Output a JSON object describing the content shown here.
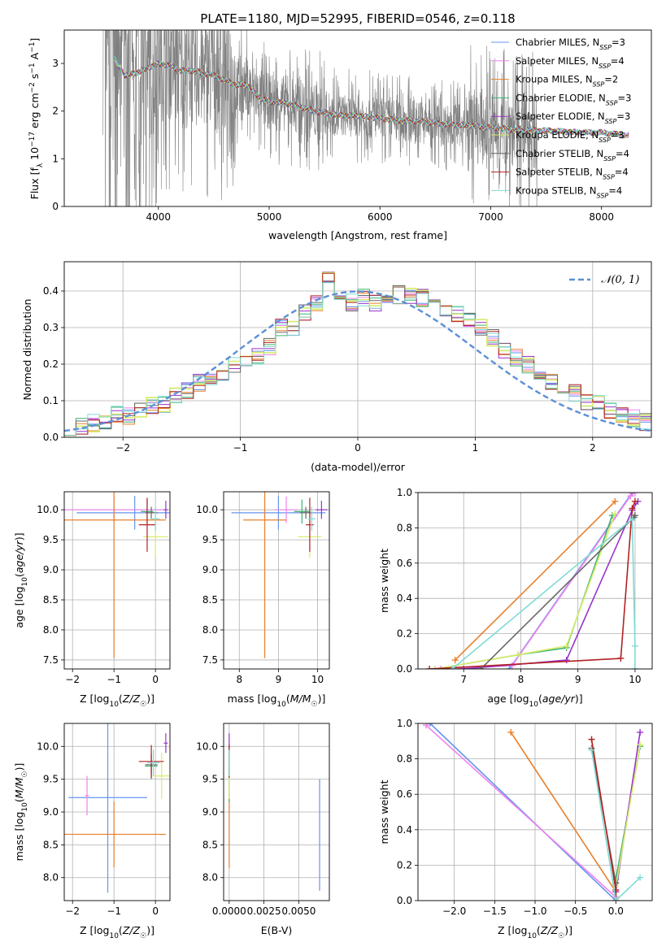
{
  "colors": {
    "obs": "#808080",
    "grid": "#b0b0b0",
    "series": [
      "#6495ed",
      "#ee82ee",
      "#e8802a",
      "#3cb371",
      "#9932cc",
      "#d8ec6a",
      "#696969",
      "#b22222",
      "#7fdbd4"
    ],
    "normal": "#5b8fd6"
  },
  "chart_data": [
    {
      "id": "spectrum",
      "type": "line",
      "title": "PLATE=1180, MJD=52995, FIBERID=0546, z=0.118",
      "xlabel": "wavelength [Angstrom, rest frame]",
      "ylabel": "Flux [f_λ 10^-17 erg cm^-2 s^-1 A^-1]",
      "xlim": [
        3150,
        8450
      ],
      "ylim": [
        0,
        3.7
      ],
      "xticks": [
        4000,
        5000,
        6000,
        7000,
        8000
      ],
      "yticks": [
        0,
        1,
        2,
        3
      ],
      "grid": false,
      "legend_position": "upper-right",
      "legend": [
        {
          "label": "Chabrier MILES, N",
          "sub": "SSP",
          "tail": "=3"
        },
        {
          "label": "Salpeter MILES, N",
          "sub": "SSP",
          "tail": "=4"
        },
        {
          "label": "Kroupa MILES, N",
          "sub": "SSP",
          "tail": "=2"
        },
        {
          "label": "Chabrier ELODIE, N",
          "sub": "SSP",
          "tail": "=3"
        },
        {
          "label": "Salpeter ELODIE, N",
          "sub": "SSP",
          "tail": "=3"
        },
        {
          "label": "Kroupa ELODIE, N",
          "sub": "SSP",
          "tail": "=3"
        },
        {
          "label": "Chabrier STELIB, N",
          "sub": "SSP",
          "tail": "=4"
        },
        {
          "label": "Salpeter STELIB, N",
          "sub": "SSP",
          "tail": "=4"
        },
        {
          "label": "Kroupa STELIB, N",
          "sub": "SSP",
          "tail": "=4"
        }
      ],
      "model_continuum": {
        "x": [
          3600,
          3700,
          3800,
          3900,
          4000,
          4100,
          4200,
          4300,
          4400,
          4500,
          4600,
          4700,
          4800,
          4900,
          5000,
          5200,
          5400,
          5600,
          5800,
          6000,
          6200,
          6400,
          6600,
          6800,
          7000,
          7200,
          7400,
          7600,
          7800,
          8000,
          8200
        ],
        "y": [
          3.1,
          2.75,
          2.8,
          2.9,
          3.0,
          2.95,
          2.85,
          2.85,
          2.8,
          2.75,
          2.65,
          2.55,
          2.55,
          2.3,
          2.2,
          2.15,
          2.0,
          1.92,
          1.9,
          1.85,
          1.8,
          1.78,
          1.72,
          1.7,
          1.65,
          1.62,
          1.6,
          1.58,
          1.55,
          1.55,
          1.5
        ]
      }
    },
    {
      "id": "residuals",
      "type": "line",
      "xlabel": "(data-model)/error",
      "ylabel": "Normed distribution",
      "xlim": [
        -2.5,
        2.5
      ],
      "ylim": [
        0,
        0.48
      ],
      "xticks": [
        -2,
        -1,
        0,
        1,
        2
      ],
      "yticks": [
        0.0,
        0.1,
        0.2,
        0.3,
        0.4
      ],
      "grid": true,
      "legend_label": "𝒩(0, 1)",
      "bin_width": 0.1,
      "bin_start": -2.5,
      "base_values": [
        0.03,
        0.03,
        0.04,
        0.04,
        0.06,
        0.06,
        0.07,
        0.09,
        0.09,
        0.11,
        0.13,
        0.15,
        0.16,
        0.18,
        0.2,
        0.2,
        0.22,
        0.25,
        0.3,
        0.3,
        0.34,
        0.37,
        0.44,
        0.37,
        0.37,
        0.38,
        0.37,
        0.38,
        0.39,
        0.39,
        0.38,
        0.37,
        0.35,
        0.34,
        0.32,
        0.3,
        0.27,
        0.24,
        0.22,
        0.2,
        0.17,
        0.15,
        0.13,
        0.12,
        0.1,
        0.09,
        0.07,
        0.06,
        0.05,
        0.04
      ]
    },
    {
      "id": "age-vs-Z",
      "type": "scatter",
      "xlabel": "Z [log10(Z/Z☉)]",
      "ylabel": "age [log10(age/yr)]",
      "xlim": [
        -2.2,
        0.35
      ],
      "ylim": [
        7.35,
        10.3
      ],
      "xticks": [
        -2,
        -1,
        0
      ],
      "yticks": [
        7.5,
        8.0,
        8.5,
        9.0,
        9.5,
        10.0
      ],
      "grid": true,
      "errorbars": [
        {
          "series": 0,
          "x": -0.5,
          "xerr": 1.4,
          "y": 9.95,
          "yerr": 0.28
        },
        {
          "series": 1,
          "x": -1.0,
          "xerr": 1.2,
          "y": 10.0,
          "yerr": 0.22
        },
        {
          "series": 2,
          "x": -1.0,
          "xerr": 1.25,
          "y": 9.83,
          "yerr": 2.3
        },
        {
          "series": 3,
          "x": -0.2,
          "xerr": 0.15,
          "y": 9.97,
          "yerr": 0.2
        },
        {
          "series": 4,
          "x": 0.25,
          "xerr": 0.05,
          "y": 10.0,
          "yerr": 0.15
        },
        {
          "series": 5,
          "x": 0.0,
          "xerr": 0.3,
          "y": 9.55,
          "yerr": 0.35
        },
        {
          "series": 6,
          "x": -0.1,
          "xerr": 0.15,
          "y": 9.95,
          "yerr": 0.1
        },
        {
          "series": 7,
          "x": -0.2,
          "xerr": 0.2,
          "y": 9.75,
          "yerr": 0.45
        },
        {
          "series": 8,
          "x": 0.0,
          "xerr": 0.1,
          "y": 9.85,
          "yerr": 0.2
        }
      ]
    },
    {
      "id": "age-vs-mass",
      "type": "scatter",
      "xlabel": "mass [log10(M/M☉)]",
      "ylabel": "",
      "xlim": [
        7.6,
        10.3
      ],
      "ylim": [
        7.35,
        10.3
      ],
      "xticks": [
        8,
        9,
        10
      ],
      "yticks": [
        7.5,
        8.0,
        8.5,
        9.0,
        9.5,
        10.0
      ],
      "grid": true,
      "errorbars": [
        {
          "series": 0,
          "x": 9.0,
          "xerr": 1.2,
          "y": 9.95,
          "yerr": 0.28
        },
        {
          "series": 1,
          "x": 9.2,
          "xerr": 0.3,
          "y": 10.0,
          "yerr": 0.22
        },
        {
          "series": 2,
          "x": 8.65,
          "xerr": 0.55,
          "y": 9.83,
          "yerr": 2.3
        },
        {
          "series": 3,
          "x": 9.6,
          "xerr": 0.2,
          "y": 9.97,
          "yerr": 0.2
        },
        {
          "series": 4,
          "x": 10.1,
          "xerr": 0.15,
          "y": 10.0,
          "yerr": 0.15
        },
        {
          "series": 5,
          "x": 9.8,
          "xerr": 0.3,
          "y": 9.55,
          "yerr": 0.35
        },
        {
          "series": 6,
          "x": 9.7,
          "xerr": 0.15,
          "y": 9.95,
          "yerr": 0.1
        },
        {
          "series": 7,
          "x": 9.8,
          "xerr": 0.1,
          "y": 9.75,
          "yerr": 0.45
        },
        {
          "series": 8,
          "x": 9.85,
          "xerr": 0.1,
          "y": 9.85,
          "yerr": 0.2
        }
      ]
    },
    {
      "id": "weight-vs-age",
      "type": "line",
      "xlabel": "age [log10(age/yr)]",
      "ylabel": "mass weight",
      "xlim": [
        6.2,
        10.3
      ],
      "ylim": [
        0,
        1.0
      ],
      "xticks": [
        7,
        8,
        9,
        10
      ],
      "yticks": [
        0.0,
        0.2,
        0.4,
        0.6,
        0.8,
        1.0
      ],
      "grid": true,
      "series": [
        {
          "series": 0,
          "x": [
            7.8,
            9.95,
            9.95
          ],
          "y": [
            0.0,
            1.0,
            1.0
          ]
        },
        {
          "series": 1,
          "x": [
            6.6,
            7.85,
            9.92,
            10.0
          ],
          "y": [
            0.0,
            0.02,
            0.98,
            1.0
          ]
        },
        {
          "series": 2,
          "x": [
            6.85,
            9.65
          ],
          "y": [
            0.05,
            0.95
          ]
        },
        {
          "series": 3,
          "x": [
            6.5,
            7.95,
            8.8,
            9.6
          ],
          "y": [
            0.0,
            0.08,
            0.12,
            0.87
          ]
        },
        {
          "series": 4,
          "x": [
            7.0,
            8.8,
            9.95,
            10.05
          ],
          "y": [
            0.0,
            0.05,
            0.9,
            0.95
          ]
        },
        {
          "series": 5,
          "x": [
            6.5,
            7.95,
            8.8,
            9.65
          ],
          "y": [
            0.0,
            0.08,
            0.13,
            0.88
          ]
        },
        {
          "series": 6,
          "x": [
            7.3,
            9.98,
            10.0
          ],
          "y": [
            0.0,
            0.86,
            0.87
          ]
        },
        {
          "series": 7,
          "x": [
            6.4,
            9.75,
            9.95,
            10.0
          ],
          "y": [
            0.0,
            0.06,
            0.91,
            0.95
          ]
        },
        {
          "series": 8,
          "x": [
            6.8,
            9.95,
            10.0,
            10.0
          ],
          "y": [
            0.0,
            0.85,
            0.13,
            0.0
          ]
        }
      ]
    },
    {
      "id": "mass-vs-Z",
      "type": "scatter",
      "xlabel": "Z [log10(Z/Z☉)]",
      "ylabel": "mass [log10(M/M☉)]",
      "xlim": [
        -2.2,
        0.35
      ],
      "ylim": [
        7.65,
        10.35
      ],
      "xticks": [
        -2,
        -1,
        0
      ],
      "yticks": [
        8.0,
        8.5,
        9.0,
        9.5,
        10.0
      ],
      "grid": true,
      "errorbars": [
        {
          "series": 0,
          "x": -1.15,
          "xerr": 0.95,
          "y": 9.22,
          "yerr": 1.45
        },
        {
          "series": 1,
          "x": -1.65,
          "xerr": 0.05,
          "y": 9.25,
          "yerr": 0.3
        },
        {
          "series": 2,
          "x": -1.0,
          "xerr": 1.25,
          "y": 8.66,
          "yerr": 0.5
        },
        {
          "series": 3,
          "x": -0.1,
          "xerr": 0.15,
          "y": 9.7,
          "yerr": 0.2
        },
        {
          "series": 4,
          "x": 0.25,
          "xerr": 0.05,
          "y": 10.05,
          "yerr": 0.15
        },
        {
          "series": 5,
          "x": 0.15,
          "xerr": 0.2,
          "y": 9.55,
          "yerr": 0.35
        },
        {
          "series": 6,
          "x": -0.1,
          "xerr": 0.15,
          "y": 9.72,
          "yerr": 0.15
        },
        {
          "series": 7,
          "x": -0.1,
          "xerr": 0.3,
          "y": 9.77,
          "yerr": 0.25
        },
        {
          "series": 8,
          "x": -0.05,
          "xerr": 0.15,
          "y": 9.75,
          "yerr": 0.2
        }
      ]
    },
    {
      "id": "mass-vs-EBV",
      "type": "scatter",
      "xlabel": "E(B-V)",
      "ylabel": "",
      "xlim": [
        -0.0004,
        0.0072
      ],
      "ylim": [
        7.65,
        10.35
      ],
      "xticks": [
        0.0,
        0.0025,
        0.005
      ],
      "xticklabels": [
        "0.0000",
        "0.0025",
        "0.0050"
      ],
      "yticks": [
        8.0,
        8.5,
        9.0,
        9.5,
        10.0
      ],
      "grid": true,
      "errorbars": [
        {
          "series": 0,
          "x": 0.0065,
          "xerr": 0,
          "y": 8.65,
          "yerr": 0.85
        },
        {
          "series": 1,
          "x": 0.0,
          "xerr": 0,
          "y": 9.55,
          "yerr": 0.3
        },
        {
          "series": 2,
          "x": 0.0,
          "xerr": 0,
          "y": 8.75,
          "yerr": 0.6
        },
        {
          "series": 3,
          "x": 0.0,
          "xerr": 0,
          "y": 9.6,
          "yerr": 0.45
        },
        {
          "series": 4,
          "x": 0.0,
          "xerr": 0,
          "y": 10.05,
          "yerr": 0.15
        },
        {
          "series": 5,
          "x": 0.0,
          "xerr": 0,
          "y": 9.55,
          "yerr": 0.35
        },
        {
          "series": 6,
          "x": 0.0,
          "xerr": 0,
          "y": 9.72,
          "yerr": 0.15
        },
        {
          "series": 7,
          "x": 0.0,
          "xerr": 0,
          "y": 9.77,
          "yerr": 0.25
        },
        {
          "series": 8,
          "x": 0.0,
          "xerr": 0,
          "y": 9.75,
          "yerr": 0.2
        }
      ]
    },
    {
      "id": "weight-vs-Z",
      "type": "line",
      "xlabel": "Z [log10(Z/Z☉)]",
      "ylabel": "mass weight",
      "xlim": [
        -2.45,
        0.45
      ],
      "ylim": [
        0,
        1.0
      ],
      "xticks": [
        -2.0,
        -1.5,
        -1.0,
        -0.5,
        0.0
      ],
      "xticklabels": [
        "−2.0",
        "−1.5",
        "−1.0",
        "−0.5",
        "0.0"
      ],
      "yticks": [
        0.0,
        0.2,
        0.4,
        0.6,
        0.8,
        1.0
      ],
      "grid": true,
      "series": [
        {
          "series": 0,
          "x": [
            -2.3,
            0.0,
            0.0
          ],
          "y": [
            1.0,
            0.0,
            0.0
          ]
        },
        {
          "series": 1,
          "x": [
            -2.35,
            0.0,
            0.0
          ],
          "y": [
            0.99,
            0.02,
            0.0
          ]
        },
        {
          "series": 2,
          "x": [
            -1.3,
            0.0
          ],
          "y": [
            0.95,
            0.05
          ]
        },
        {
          "series": 3,
          "x": [
            0.3,
            0.0,
            0.0
          ],
          "y": [
            0.87,
            0.12,
            0.0
          ]
        },
        {
          "series": 4,
          "x": [
            0.3,
            0.0,
            0.0
          ],
          "y": [
            0.95,
            0.05,
            0.0
          ]
        },
        {
          "series": 5,
          "x": [
            0.3,
            0.0,
            0.0
          ],
          "y": [
            0.88,
            0.08,
            0.0
          ]
        },
        {
          "series": 6,
          "x": [
            -0.3,
            0.0,
            0.0
          ],
          "y": [
            0.86,
            0.1,
            0.0
          ]
        },
        {
          "series": 7,
          "x": [
            -0.3,
            0.0,
            0.0
          ],
          "y": [
            0.91,
            0.06,
            0.0
          ]
        },
        {
          "series": 8,
          "x": [
            -0.3,
            0.0,
            0.3
          ],
          "y": [
            0.85,
            0.0,
            0.13
          ]
        }
      ]
    }
  ]
}
